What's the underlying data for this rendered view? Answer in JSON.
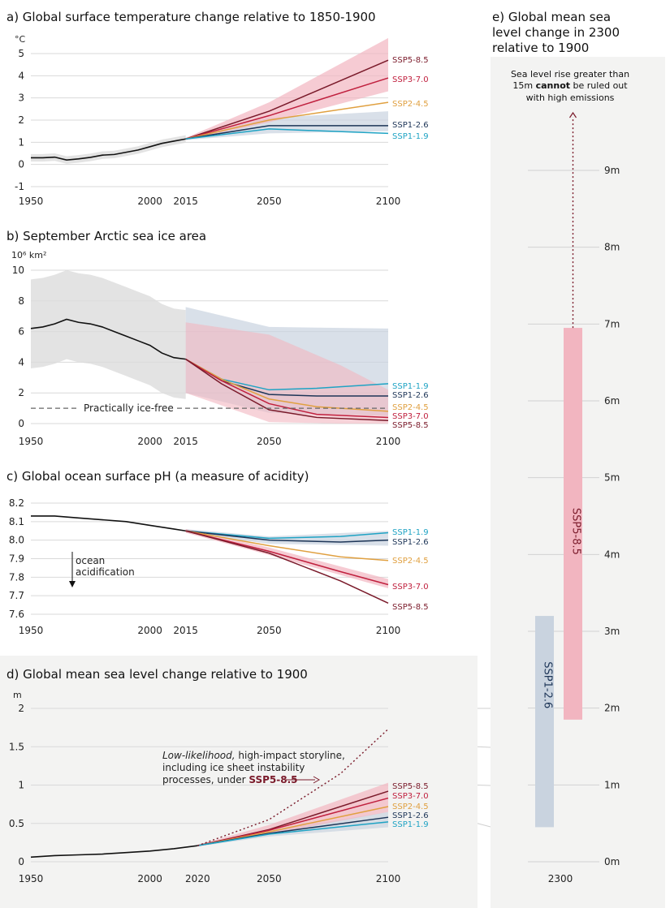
{
  "colors": {
    "historical": "#111111",
    "ssp119": "#1fa3c4",
    "ssp126": "#1d3557",
    "ssp245": "#e0a040",
    "ssp370": "#c0203e",
    "ssp585": "#7a1a2a",
    "band_red": "#f2b5c0",
    "band_blue": "#c9d3df",
    "band_gray": "#dcdcdc",
    "panel_bg": "#f3f3f2"
  },
  "chart_data": [
    {
      "id": "a",
      "type": "line",
      "title": "a) Global surface temperature change relative to 1850-1900",
      "ylabel": "°C",
      "xlim": [
        1950,
        2100
      ],
      "ylim": [
        -1,
        5
      ],
      "xticks": [
        1950,
        2000,
        2015,
        2050,
        2100
      ],
      "yticks": [
        -1,
        0,
        1,
        2,
        3,
        4,
        5
      ],
      "historical": {
        "x": [
          1950,
          1955,
          1960,
          1965,
          1970,
          1975,
          1980,
          1985,
          1990,
          1995,
          2000,
          2005,
          2010,
          2015
        ],
        "y": [
          0.3,
          0.3,
          0.33,
          0.2,
          0.25,
          0.32,
          0.42,
          0.45,
          0.55,
          0.65,
          0.8,
          0.95,
          1.05,
          1.15
        ]
      },
      "series": [
        {
          "name": "SSP5-8.5",
          "color": "ssp585",
          "x": [
            2015,
            2050,
            2100
          ],
          "y": [
            1.15,
            2.4,
            4.7
          ]
        },
        {
          "name": "SSP3-7.0",
          "color": "ssp370",
          "x": [
            2015,
            2050,
            2100
          ],
          "y": [
            1.15,
            2.2,
            3.9
          ]
        },
        {
          "name": "SSP2-4.5",
          "color": "ssp245",
          "x": [
            2015,
            2050,
            2100
          ],
          "y": [
            1.15,
            2.0,
            2.8
          ]
        },
        {
          "name": "SSP1-2.6",
          "color": "ssp126",
          "x": [
            2015,
            2050,
            2100
          ],
          "y": [
            1.15,
            1.75,
            1.75
          ]
        },
        {
          "name": "SSP1-1.9",
          "color": "ssp119",
          "x": [
            2015,
            2050,
            2100
          ],
          "y": [
            1.15,
            1.6,
            1.4
          ]
        }
      ]
    },
    {
      "id": "b",
      "type": "line",
      "title": "b) September Arctic sea ice area",
      "ylabel": "10⁶ km²",
      "xlim": [
        1950,
        2100
      ],
      "ylim": [
        0,
        10
      ],
      "xticks": [
        1950,
        2000,
        2015,
        2050,
        2100
      ],
      "yticks": [
        0,
        2,
        4,
        6,
        8,
        10
      ],
      "threshold": {
        "y": 1,
        "label": "Practically ice-free"
      },
      "historical": {
        "x": [
          1950,
          1955,
          1960,
          1965,
          1970,
          1975,
          1980,
          1985,
          1990,
          1995,
          2000,
          2005,
          2010,
          2015
        ],
        "y": [
          6.2,
          6.3,
          6.5,
          6.8,
          6.6,
          6.5,
          6.3,
          6.0,
          5.7,
          5.4,
          5.1,
          4.6,
          4.3,
          4.2
        ]
      },
      "series": [
        {
          "name": "SSP1-1.9",
          "color": "ssp119",
          "x": [
            2015,
            2030,
            2050,
            2070,
            2100
          ],
          "y": [
            4.2,
            2.9,
            2.2,
            2.3,
            2.6
          ]
        },
        {
          "name": "SSP1-2.6",
          "color": "ssp126",
          "x": [
            2015,
            2030,
            2050,
            2070,
            2100
          ],
          "y": [
            4.2,
            2.8,
            1.9,
            1.8,
            1.8
          ]
        },
        {
          "name": "SSP2-4.5",
          "color": "ssp245",
          "x": [
            2015,
            2030,
            2050,
            2070,
            2100
          ],
          "y": [
            4.2,
            2.9,
            1.6,
            1.1,
            0.8
          ]
        },
        {
          "name": "SSP3-7.0",
          "color": "ssp370",
          "x": [
            2015,
            2030,
            2050,
            2070,
            2100
          ],
          "y": [
            4.2,
            2.8,
            1.3,
            0.6,
            0.4
          ]
        },
        {
          "name": "SSP5-8.5",
          "color": "ssp585",
          "x": [
            2015,
            2030,
            2050,
            2070,
            2100
          ],
          "y": [
            4.2,
            2.6,
            0.9,
            0.4,
            0.2
          ]
        }
      ]
    },
    {
      "id": "c",
      "type": "line",
      "title": "c) Global ocean surface pH (a measure of acidity)",
      "annotation": "ocean acidification",
      "xlim": [
        1950,
        2100
      ],
      "ylim": [
        7.6,
        8.2
      ],
      "xticks": [
        1950,
        2000,
        2015,
        2050,
        2100
      ],
      "yticks": [
        7.6,
        7.7,
        7.8,
        7.9,
        8.0,
        8.1,
        8.2
      ],
      "historical": {
        "x": [
          1950,
          1960,
          1970,
          1980,
          1990,
          2000,
          2010,
          2015
        ],
        "y": [
          8.13,
          8.13,
          8.12,
          8.11,
          8.1,
          8.08,
          8.06,
          8.05
        ]
      },
      "series": [
        {
          "name": "SSP1-1.9",
          "color": "ssp119",
          "x": [
            2015,
            2050,
            2080,
            2100
          ],
          "y": [
            8.05,
            8.01,
            8.02,
            8.04
          ]
        },
        {
          "name": "SSP1-2.6",
          "color": "ssp126",
          "x": [
            2015,
            2050,
            2080,
            2100
          ],
          "y": [
            8.05,
            8.0,
            7.99,
            8.0
          ]
        },
        {
          "name": "SSP2-4.5",
          "color": "ssp245",
          "x": [
            2015,
            2050,
            2080,
            2100
          ],
          "y": [
            8.05,
            7.97,
            7.91,
            7.89
          ]
        },
        {
          "name": "SSP3-7.0",
          "color": "ssp370",
          "x": [
            2015,
            2050,
            2080,
            2100
          ],
          "y": [
            8.05,
            7.94,
            7.83,
            7.76
          ]
        },
        {
          "name": "SSP5-8.5",
          "color": "ssp585",
          "x": [
            2015,
            2050,
            2080,
            2100
          ],
          "y": [
            8.05,
            7.93,
            7.78,
            7.66
          ]
        }
      ]
    },
    {
      "id": "d",
      "type": "line",
      "title": "d) Global mean sea level change relative to 1900",
      "ylabel": "m",
      "xlim": [
        1950,
        2100
      ],
      "ylim": [
        0,
        2
      ],
      "xticks": [
        1950,
        2000,
        2020,
        2050,
        2100
      ],
      "yticks": [
        0,
        0.5,
        1,
        1.5,
        2
      ],
      "storyline": {
        "text_1": "Low-likelihood, high-impact storyline,",
        "text_2": "including ice sheet instability",
        "text_3": "processes, under",
        "scenario": "SSP5-8.5",
        "x": [
          2020,
          2050,
          2080,
          2100
        ],
        "y": [
          0.21,
          0.55,
          1.15,
          1.73
        ]
      },
      "historical": {
        "x": [
          1950,
          1960,
          1970,
          1980,
          1990,
          2000,
          2010,
          2020
        ],
        "y": [
          0.06,
          0.08,
          0.09,
          0.1,
          0.12,
          0.14,
          0.17,
          0.21
        ]
      },
      "series": [
        {
          "name": "SSP5-8.5",
          "color": "ssp585",
          "x": [
            2020,
            2050,
            2100
          ],
          "y": [
            0.21,
            0.42,
            0.92
          ]
        },
        {
          "name": "SSP3-7.0",
          "color": "ssp370",
          "x": [
            2020,
            2050,
            2100
          ],
          "y": [
            0.21,
            0.41,
            0.83
          ]
        },
        {
          "name": "SSP2-4.5",
          "color": "ssp245",
          "x": [
            2020,
            2050,
            2100
          ],
          "y": [
            0.21,
            0.39,
            0.72
          ]
        },
        {
          "name": "SSP1-2.6",
          "color": "ssp126",
          "x": [
            2020,
            2050,
            2100
          ],
          "y": [
            0.21,
            0.37,
            0.58
          ]
        },
        {
          "name": "SSP1-1.9",
          "color": "ssp119",
          "x": [
            2020,
            2050,
            2100
          ],
          "y": [
            0.21,
            0.36,
            0.52
          ]
        }
      ]
    },
    {
      "id": "e",
      "type": "bar",
      "title_1": "e) Global mean sea",
      "title_2": "level change in 2300",
      "title_3": "relative to 1900",
      "xlabel": "2300",
      "ylim": [
        0,
        10
      ],
      "yticks": [
        0,
        1,
        2,
        3,
        4,
        5,
        6,
        7,
        8,
        9
      ],
      "ytick_labels": [
        "0m",
        "1m",
        "2m",
        "3m",
        "4m",
        "5m",
        "6m",
        "7m",
        "8m",
        "9m"
      ],
      "bars": [
        {
          "name": "SSP1-2.6",
          "color": "band_blue",
          "low": 0.45,
          "high": 3.2
        },
        {
          "name": "SSP5-8.5",
          "color": "band_red",
          "low": 1.85,
          "high": 6.95
        }
      ],
      "note_1": "Sea level rise greater than",
      "note_2a": "15m",
      "note_2b": "cannot",
      "note_2c": "be ruled out",
      "note_3": "with high emissions"
    }
  ]
}
